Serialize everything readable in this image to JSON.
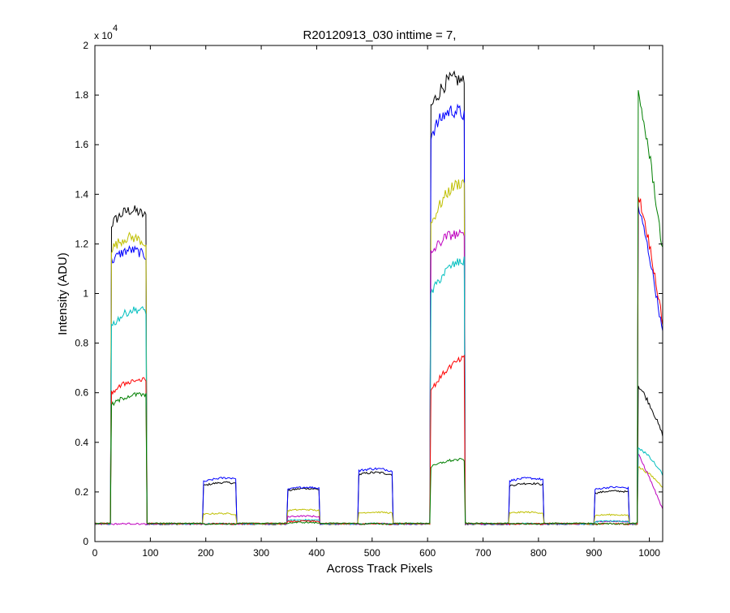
{
  "chart_data": {
    "type": "line",
    "title": "R20120913_030 inttime = 7,",
    "xlabel": "Across Track Pixels",
    "ylabel": "Intensity (ADU)",
    "y_exponent_base": "x 10",
    "y_exponent_power": "4",
    "xlim": [
      0,
      1024
    ],
    "ylim": [
      0,
      20000
    ],
    "xticks": [
      0,
      100,
      200,
      300,
      400,
      500,
      600,
      700,
      800,
      900,
      1000
    ],
    "xtick_labels": [
      "0",
      "100",
      "200",
      "300",
      "400",
      "500",
      "600",
      "700",
      "800",
      "900",
      "1000"
    ],
    "yticks": [
      0,
      2000,
      4000,
      6000,
      8000,
      10000,
      12000,
      14000,
      16000,
      18000,
      20000
    ],
    "ytick_labels": [
      "0",
      "0.2",
      "0.4",
      "0.6",
      "0.8",
      "1",
      "1.2",
      "1.4",
      "1.6",
      "1.8",
      "2"
    ],
    "grid": false,
    "baseline": 700,
    "segments": [
      {
        "x0": 30,
        "x1": 92
      },
      {
        "x0": 195,
        "x1": 255
      },
      {
        "x0": 348,
        "x1": 405
      },
      {
        "x0": 476,
        "x1": 536
      },
      {
        "x0": 606,
        "x1": 666
      },
      {
        "x0": 748,
        "x1": 808
      },
      {
        "x0": 902,
        "x1": 962
      },
      {
        "x0": 980,
        "x1": 1024
      }
    ],
    "series": [
      {
        "color": "#000000",
        "start": [
          12800,
          2250,
          2050,
          2700,
          17500,
          2250,
          1950,
          6300
        ],
        "end": [
          13100,
          2350,
          2100,
          2700,
          18500,
          2300,
          2000,
          4300
        ]
      },
      {
        "color": "#0000ff",
        "start": [
          11300,
          2400,
          2100,
          2850,
          16400,
          2450,
          2100,
          13500
        ],
        "end": [
          11500,
          2550,
          2150,
          2850,
          17200,
          2500,
          2150,
          8400
        ]
      },
      {
        "color": "#bfbf00",
        "start": [
          11800,
          1100,
          1250,
          1150,
          12800,
          1150,
          1050,
          3000
        ],
        "end": [
          12000,
          1100,
          1250,
          1150,
          14500,
          1150,
          1050,
          2200
        ]
      },
      {
        "color": "#bf00bf",
        "start": [
          700,
          700,
          1000,
          700,
          11600,
          700,
          800,
          3500
        ],
        "end": [
          700,
          700,
          1000,
          700,
          12300,
          700,
          800,
          1300
        ]
      },
      {
        "color": "#00bfbf",
        "start": [
          8700,
          700,
          850,
          700,
          10000,
          700,
          800,
          3800
        ],
        "end": [
          9300,
          700,
          850,
          700,
          11300,
          700,
          800,
          2700
        ]
      },
      {
        "color": "#ff0000",
        "start": [
          6000,
          700,
          800,
          700,
          6100,
          700,
          700,
          14000
        ],
        "end": [
          6500,
          700,
          800,
          700,
          7400,
          700,
          700,
          8800
        ]
      },
      {
        "color": "#007f00",
        "start": [
          5500,
          700,
          750,
          700,
          3000,
          700,
          700,
          18000
        ],
        "end": [
          5900,
          700,
          750,
          700,
          3300,
          700,
          700,
          11700
        ]
      }
    ]
  }
}
